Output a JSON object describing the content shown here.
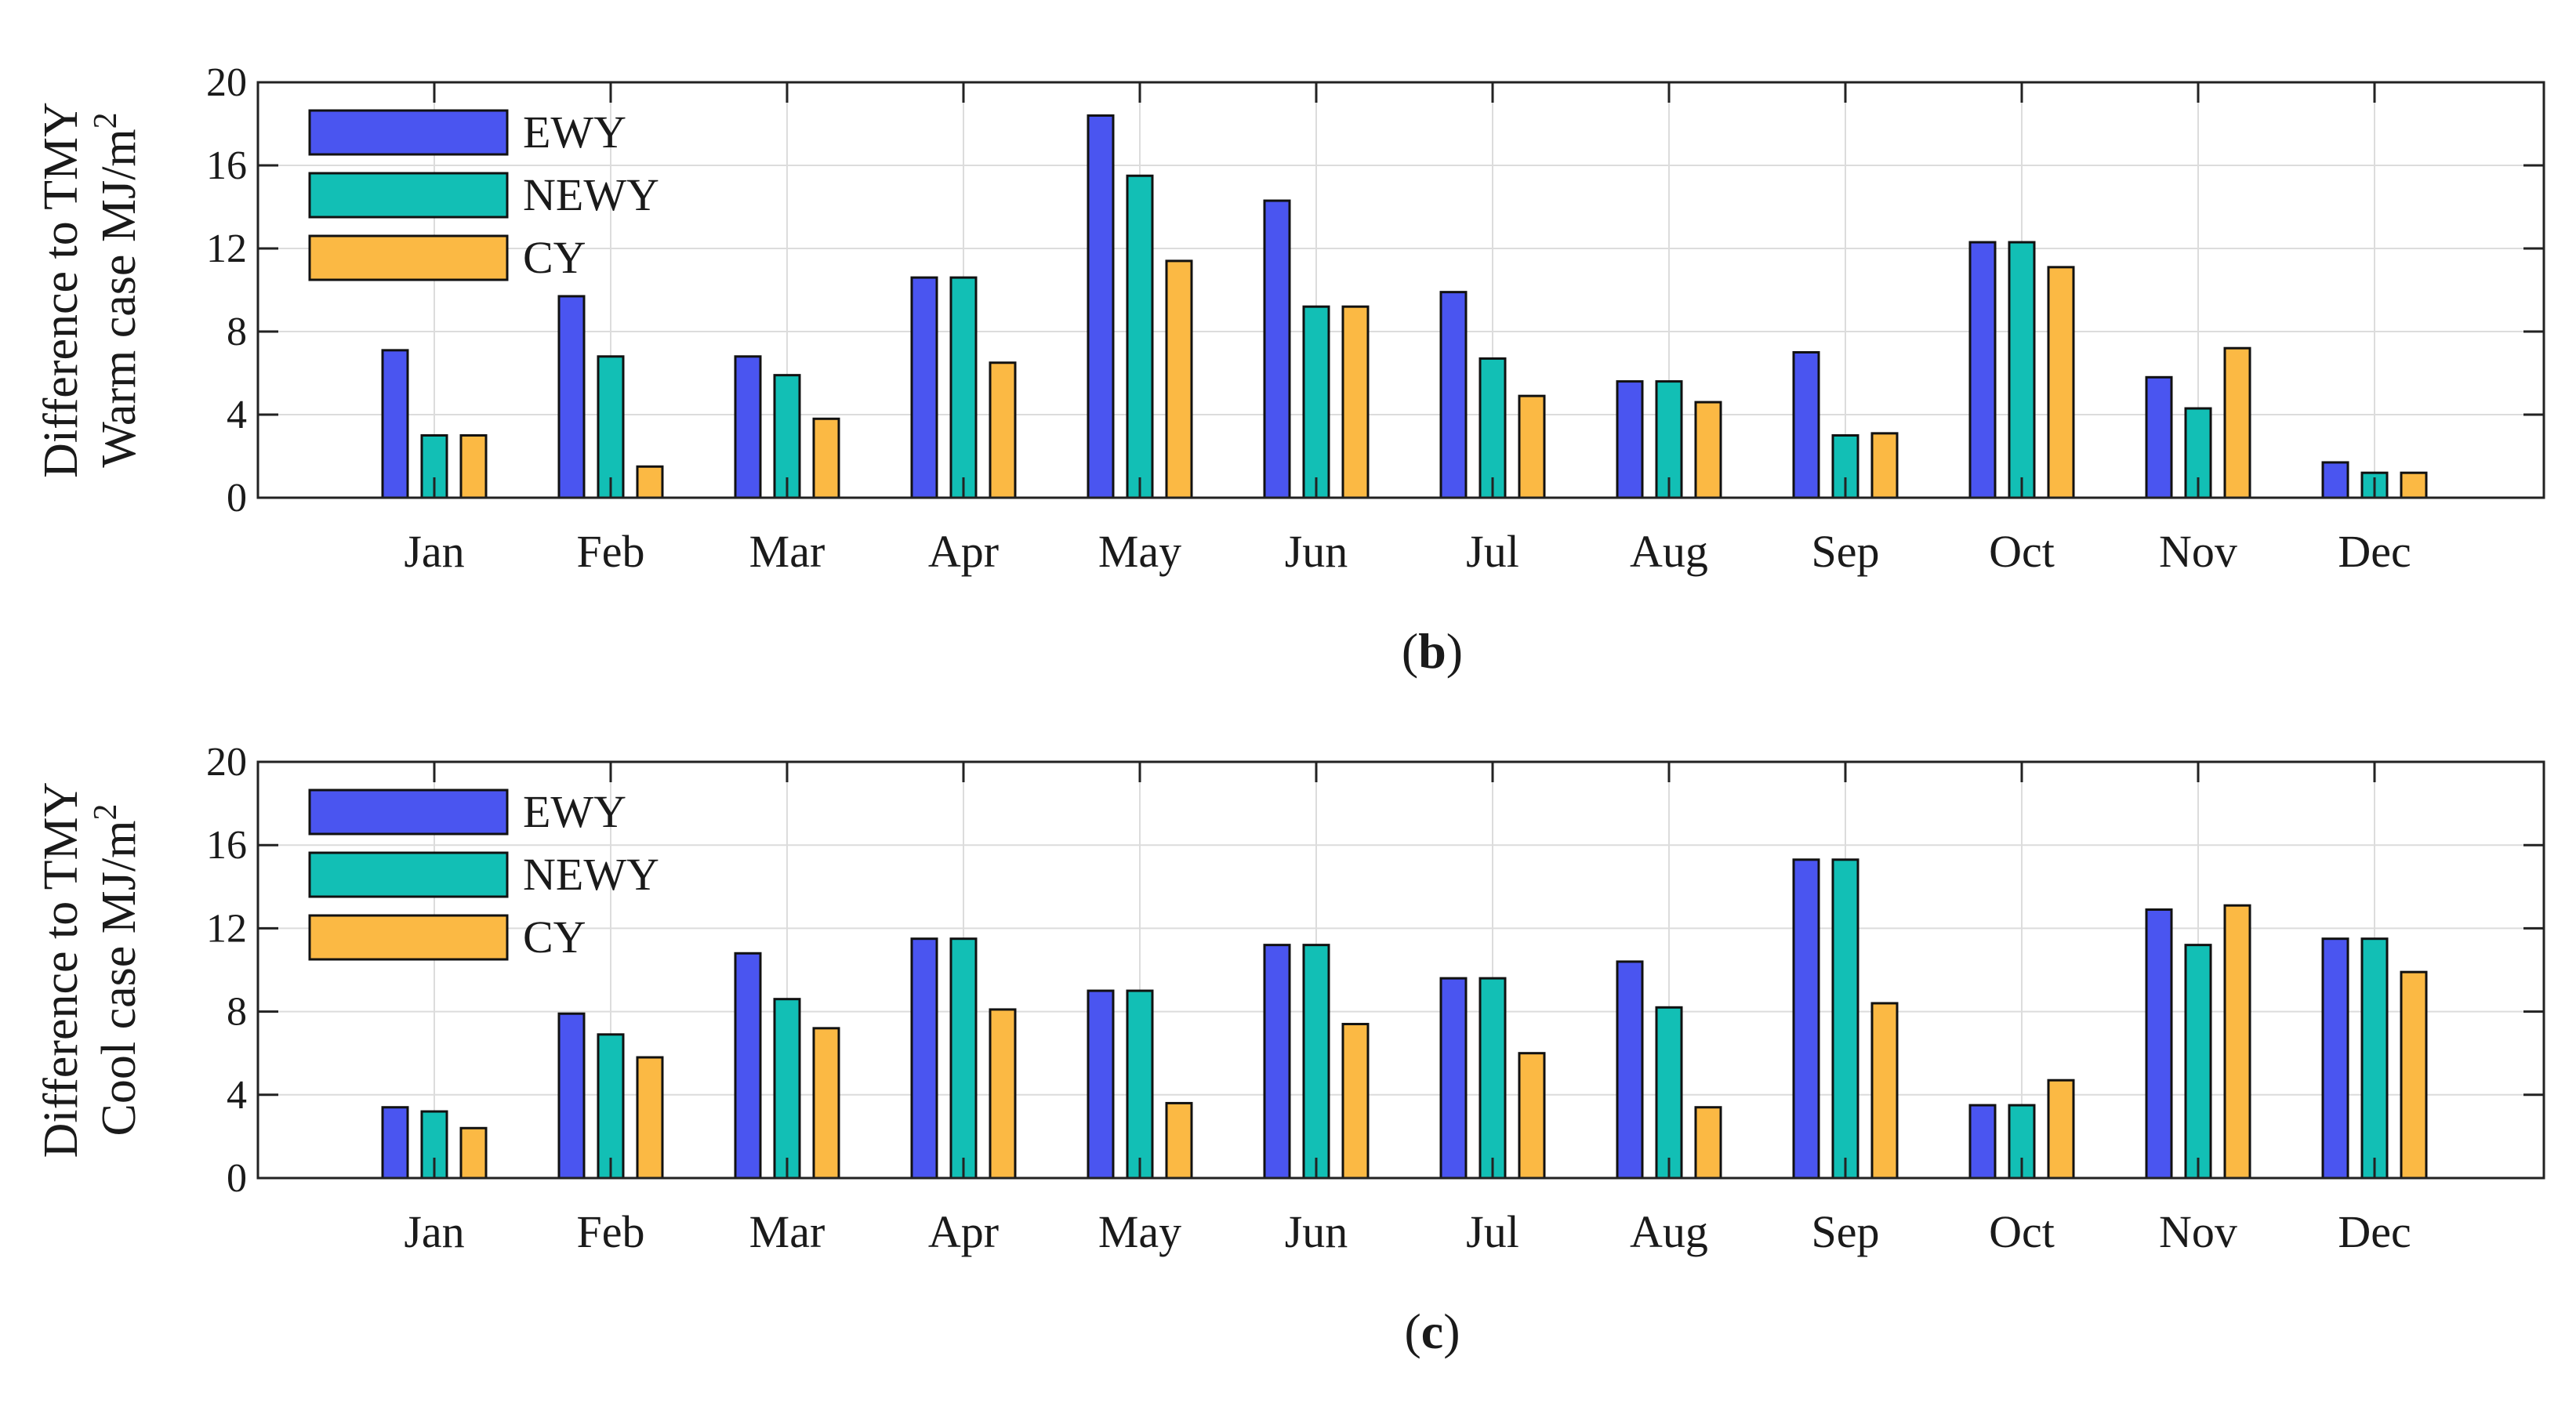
{
  "chart_data": [
    {
      "type": "bar",
      "panel_label": "b",
      "ylabel_line1": "Difference to TMY",
      "ylabel_line2_prefix": "Warm case MJ/m",
      "ylabel_superscript": "2",
      "categories": [
        "Jan",
        "Feb",
        "Mar",
        "Apr",
        "May",
        "Jun",
        "Jul",
        "Aug",
        "Sep",
        "Oct",
        "Nov",
        "Dec"
      ],
      "yticks": [
        0,
        4,
        8,
        12,
        16,
        20
      ],
      "ylim": [
        0,
        20
      ],
      "grid": true,
      "legend_position": "top-left",
      "series": [
        {
          "name": "EWY",
          "color": "#4a55f0",
          "values": [
            7.1,
            9.7,
            6.8,
            10.6,
            18.4,
            14.3,
            9.9,
            5.6,
            7.0,
            12.3,
            5.8,
            1.7
          ]
        },
        {
          "name": "NEWY",
          "color": "#12bfb5",
          "values": [
            3.0,
            6.8,
            5.9,
            10.6,
            15.5,
            9.2,
            6.7,
            5.6,
            3.0,
            12.3,
            4.3,
            1.2
          ]
        },
        {
          "name": "CY",
          "color": "#fbb944",
          "values": [
            3.0,
            1.5,
            3.8,
            6.5,
            11.4,
            9.2,
            4.9,
            4.6,
            3.1,
            11.1,
            7.2,
            1.2
          ]
        }
      ]
    },
    {
      "type": "bar",
      "panel_label": "c",
      "ylabel_line1": "Difference to TMY",
      "ylabel_line2_prefix": "Cool case MJ/m",
      "ylabel_superscript": "2",
      "categories": [
        "Jan",
        "Feb",
        "Mar",
        "Apr",
        "May",
        "Jun",
        "Jul",
        "Aug",
        "Sep",
        "Oct",
        "Nov",
        "Dec"
      ],
      "yticks": [
        0,
        4,
        8,
        12,
        16,
        20
      ],
      "ylim": [
        0,
        20
      ],
      "grid": true,
      "legend_position": "top-left",
      "series": [
        {
          "name": "EWY",
          "color": "#4a55f0",
          "values": [
            3.4,
            7.9,
            10.8,
            11.5,
            9.0,
            11.2,
            9.6,
            10.4,
            15.3,
            3.5,
            12.9,
            11.5
          ]
        },
        {
          "name": "NEWY",
          "color": "#12bfb5",
          "values": [
            3.2,
            6.9,
            8.6,
            11.5,
            9.0,
            11.2,
            9.6,
            8.2,
            15.3,
            3.5,
            11.2,
            11.5
          ]
        },
        {
          "name": "CY",
          "color": "#fbb944",
          "values": [
            2.4,
            5.8,
            7.2,
            8.1,
            3.6,
            7.4,
            6.0,
            3.4,
            8.4,
            4.7,
            13.1,
            9.9
          ]
        }
      ]
    }
  ]
}
